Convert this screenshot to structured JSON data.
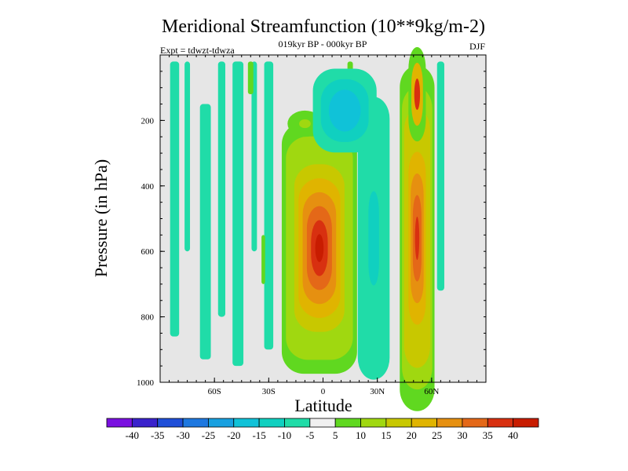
{
  "chart_data": {
    "type": "heatmap",
    "title": "Meridional Streamfunction (10**9kg/m-2)",
    "subtitle_center": "019kyr BP - 000kyr BP",
    "subtitle_left": "Expt = tdwzt-tdwza",
    "subtitle_right": "DJF",
    "xlabel": "Latitude",
    "ylabel": "Pressure (in hPa)",
    "x_ticks": [
      {
        "value": -60,
        "label": "60S"
      },
      {
        "value": -30,
        "label": "30S"
      },
      {
        "value": 0,
        "label": "0"
      },
      {
        "value": 30,
        "label": "30N"
      },
      {
        "value": 60,
        "label": "60N"
      }
    ],
    "y_ticks": [
      {
        "value": 200,
        "label": "200"
      },
      {
        "value": 400,
        "label": "400"
      },
      {
        "value": 600,
        "label": "600"
      },
      {
        "value": 800,
        "label": "800"
      },
      {
        "value": 1000,
        "label": "1000"
      }
    ],
    "xlim": [
      -90,
      90
    ],
    "ylim": [
      1000,
      0
    ],
    "colorbar": {
      "labels": [
        "-40",
        "-35",
        "-30",
        "-25",
        "-20",
        "-15",
        "-10",
        "-5",
        "5",
        "10",
        "15",
        "20",
        "25",
        "30",
        "35",
        "40"
      ],
      "colors": [
        "#7a10e0",
        "#3a22cc",
        "#1f4fd8",
        "#1e78e0",
        "#18a0e0",
        "#10c2d8",
        "#10d0c0",
        "#20dca8",
        "#f0f0f0",
        "#60d820",
        "#a0d810",
        "#c8c800",
        "#e0b400",
        "#e69010",
        "#e46818",
        "#d83010",
        "#c81c00"
      ]
    },
    "fields": [
      {
        "name": "tropical-cell",
        "center": [
          -4,
          610
        ],
        "width": [
          10,
          22
        ],
        "peak": 40
      },
      {
        "name": "tropical-cell-top",
        "center": [
          0,
          300
        ],
        "width": [
          14,
          80
        ],
        "peak": 17
      },
      {
        "name": "subtropical-negative",
        "center": [
          28,
          540
        ],
        "width": [
          6,
          150
        ],
        "peak": -16
      },
      {
        "name": "upper-negative",
        "center": [
          12,
          180
        ],
        "width": [
          12,
          90
        ],
        "peak": -18
      },
      {
        "name": "northern-jet",
        "center": [
          52,
          560
        ],
        "width": [
          5,
          320
        ],
        "peak": 38
      }
    ]
  }
}
